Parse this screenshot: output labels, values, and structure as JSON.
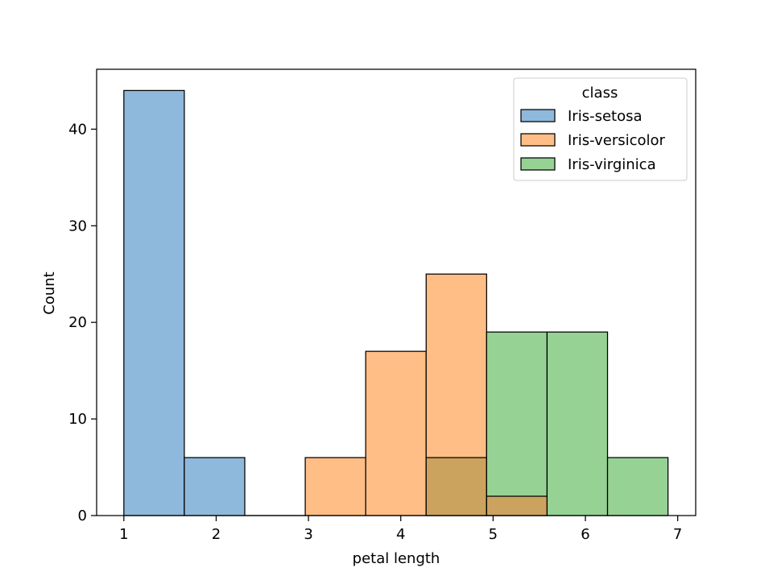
{
  "chart_data": {
    "type": "bar",
    "xlabel": "petal length",
    "ylabel": "Count",
    "xlim": [
      0.705,
      7.195
    ],
    "ylim": [
      0,
      46.2
    ],
    "xticks": [
      1,
      2,
      3,
      4,
      5,
      6,
      7
    ],
    "yticks": [
      0,
      10,
      20,
      30,
      40
    ],
    "bin_edges": [
      1.0,
      1.655,
      2.31,
      2.965,
      3.62,
      4.275,
      4.93,
      5.585,
      6.24,
      6.895
    ],
    "legend": {
      "title": "class",
      "placement": "top-right"
    },
    "series": [
      {
        "name": "Iris-setosa",
        "color": "#8fb9dc",
        "values": [
          44,
          6,
          0,
          0,
          0,
          0,
          0,
          0,
          0
        ]
      },
      {
        "name": "Iris-versicolor",
        "color": "#ffbe86",
        "values": [
          0,
          0,
          0,
          6,
          17,
          25,
          2,
          0,
          0
        ]
      },
      {
        "name": "Iris-virginica",
        "color": "#96d294",
        "values": [
          0,
          0,
          0,
          0,
          0,
          6,
          19,
          19,
          6
        ]
      }
    ],
    "overlap_color": "#cca35e",
    "grid": false
  }
}
